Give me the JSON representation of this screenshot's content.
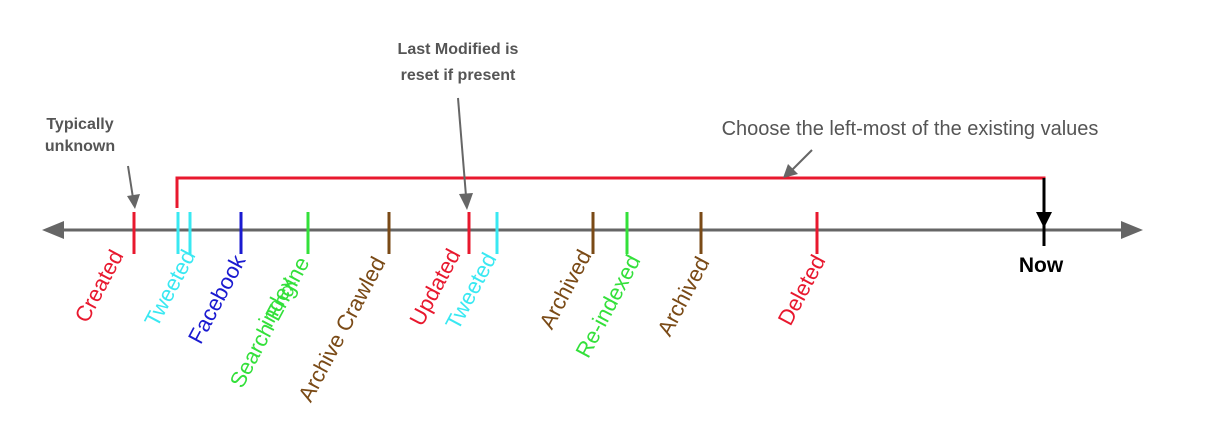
{
  "colors": {
    "axis": "#666666",
    "annotation": "#666666",
    "created": "#e8182e",
    "tweeted": "#39e8f2",
    "facebook": "#1a1ad0",
    "search": "#33e03a",
    "archive": "#7a4a16",
    "updated": "#e8182e",
    "deleted": "#e8182e",
    "bracket": "#e8182e",
    "now": "#000000"
  },
  "timeline": {
    "now_label": "Now",
    "events": [
      {
        "label": "Created",
        "color": "created"
      },
      {
        "label": "Tweeted",
        "color": "tweeted"
      },
      {
        "label": "Facebook",
        "color": "facebook"
      },
      {
        "label": "Search Engine",
        "label2": "index",
        "color": "search"
      },
      {
        "label": "Archive Crawled",
        "color": "archive"
      },
      {
        "label": "Updated",
        "color": "updated"
      },
      {
        "label": "Tweeted",
        "color": "tweeted"
      },
      {
        "label": "Archived",
        "color": "archive"
      },
      {
        "label": "Re-indexed",
        "color": "search"
      },
      {
        "label": "Archived",
        "color": "archive"
      },
      {
        "label": "Deleted",
        "color": "deleted"
      }
    ]
  },
  "callouts": {
    "typically_line1": "Typically",
    "typically_line2": "unknown",
    "modified_line1": "Last Modified is",
    "modified_line2": "reset if present",
    "choose": "Choose the left-most of the existing values"
  }
}
